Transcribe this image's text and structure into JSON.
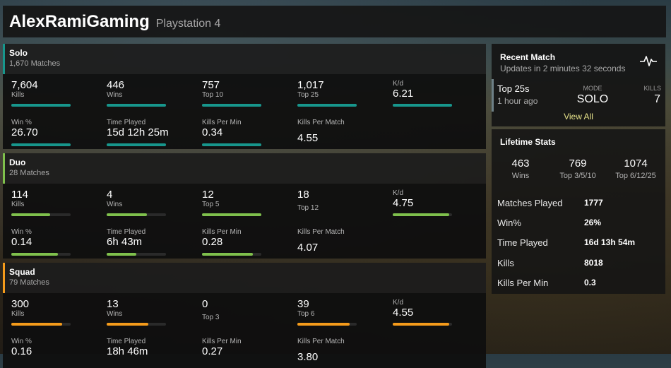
{
  "header": {
    "title": "AlexRamiGaming",
    "platform": "Playstation 4"
  },
  "colors": {
    "solo": "#17968c",
    "duo": "#7fc04c",
    "squad": "#f59b1b",
    "view_all": "#e6e28a"
  },
  "modes": {
    "solo": {
      "name": "Solo",
      "matches": "1,670 Matches",
      "stats": [
        {
          "value": "7,604",
          "label": "Kills",
          "bar": 1.0
        },
        {
          "value": "446",
          "label": "Wins",
          "bar": 1.0
        },
        {
          "value": "757",
          "label": "Top 10",
          "bar": 1.0
        },
        {
          "value": "1,017",
          "label": "Top 25",
          "bar": 1.0
        },
        {
          "value": "6.21",
          "label": "K/d",
          "bar": 1.0
        },
        {
          "value": "26.70",
          "label": "Win %",
          "bar": 1.0
        },
        {
          "value": "15d 12h 25m",
          "label": "Time Played",
          "bar": 1.0
        },
        {
          "value": "0.34",
          "label": "Kills Per Min",
          "bar": 1.0
        },
        {
          "value": "4.55",
          "label": "Kills Per Match"
        }
      ]
    },
    "duo": {
      "name": "Duo",
      "matches": "28 Matches",
      "stats": [
        {
          "value": "114",
          "label": "Kills",
          "bar": 0.65
        },
        {
          "value": "4",
          "label": "Wins",
          "bar": 0.68
        },
        {
          "value": "12",
          "label": "Top 5",
          "bar": 1.0
        },
        {
          "value": "18",
          "label": "Top 12"
        },
        {
          "value": "4.75",
          "label": "K/d",
          "bar": 0.95
        },
        {
          "value": "0.14",
          "label": "Win %",
          "bar": 0.78
        },
        {
          "value": "6h 43m",
          "label": "Time Played",
          "bar": 0.5
        },
        {
          "value": "0.28",
          "label": "Kills Per Min",
          "bar": 0.86
        },
        {
          "value": "4.07",
          "label": "Kills Per Match"
        }
      ]
    },
    "squad": {
      "name": "Squad",
      "matches": "79 Matches",
      "stats": [
        {
          "value": "300",
          "label": "Kills",
          "bar": 0.86
        },
        {
          "value": "13",
          "label": "Wins",
          "bar": 0.7
        },
        {
          "value": "0",
          "label": "Top 3"
        },
        {
          "value": "39",
          "label": "Top 6",
          "bar": 0.88
        },
        {
          "value": "4.55",
          "label": "K/d",
          "bar": 0.95
        },
        {
          "value": "0.16",
          "label": "Win %"
        },
        {
          "value": "18h 46m",
          "label": "Time Played"
        },
        {
          "value": "0.27",
          "label": "Kills Per Min"
        },
        {
          "value": "3.80",
          "label": "Kills Per Match"
        }
      ]
    }
  },
  "recent": {
    "title": "Recent Match",
    "subtitle": "Updates in 2 minutes 32 seconds",
    "icon": "pulse-icon",
    "placement": "Top 25s",
    "ago": "1 hour ago",
    "mode_label": "MODE",
    "mode_value": "SOLO",
    "kills_label": "KILLS",
    "kills_value": "7",
    "view_all": "View All"
  },
  "lifetime": {
    "title": "Lifetime Stats",
    "big": [
      {
        "value": "463",
        "label": "Wins"
      },
      {
        "value": "769",
        "label": "Top 3/5/10"
      },
      {
        "value": "1074",
        "label": "Top 6/12/25"
      }
    ],
    "rows": [
      {
        "label": "Matches Played",
        "value": "1777"
      },
      {
        "label": "Win%",
        "value": "26%"
      },
      {
        "label": "Time Played",
        "value": "16d 13h 54m"
      },
      {
        "label": "Kills",
        "value": "8018"
      },
      {
        "label": "Kills Per Min",
        "value": "0.3"
      }
    ]
  }
}
